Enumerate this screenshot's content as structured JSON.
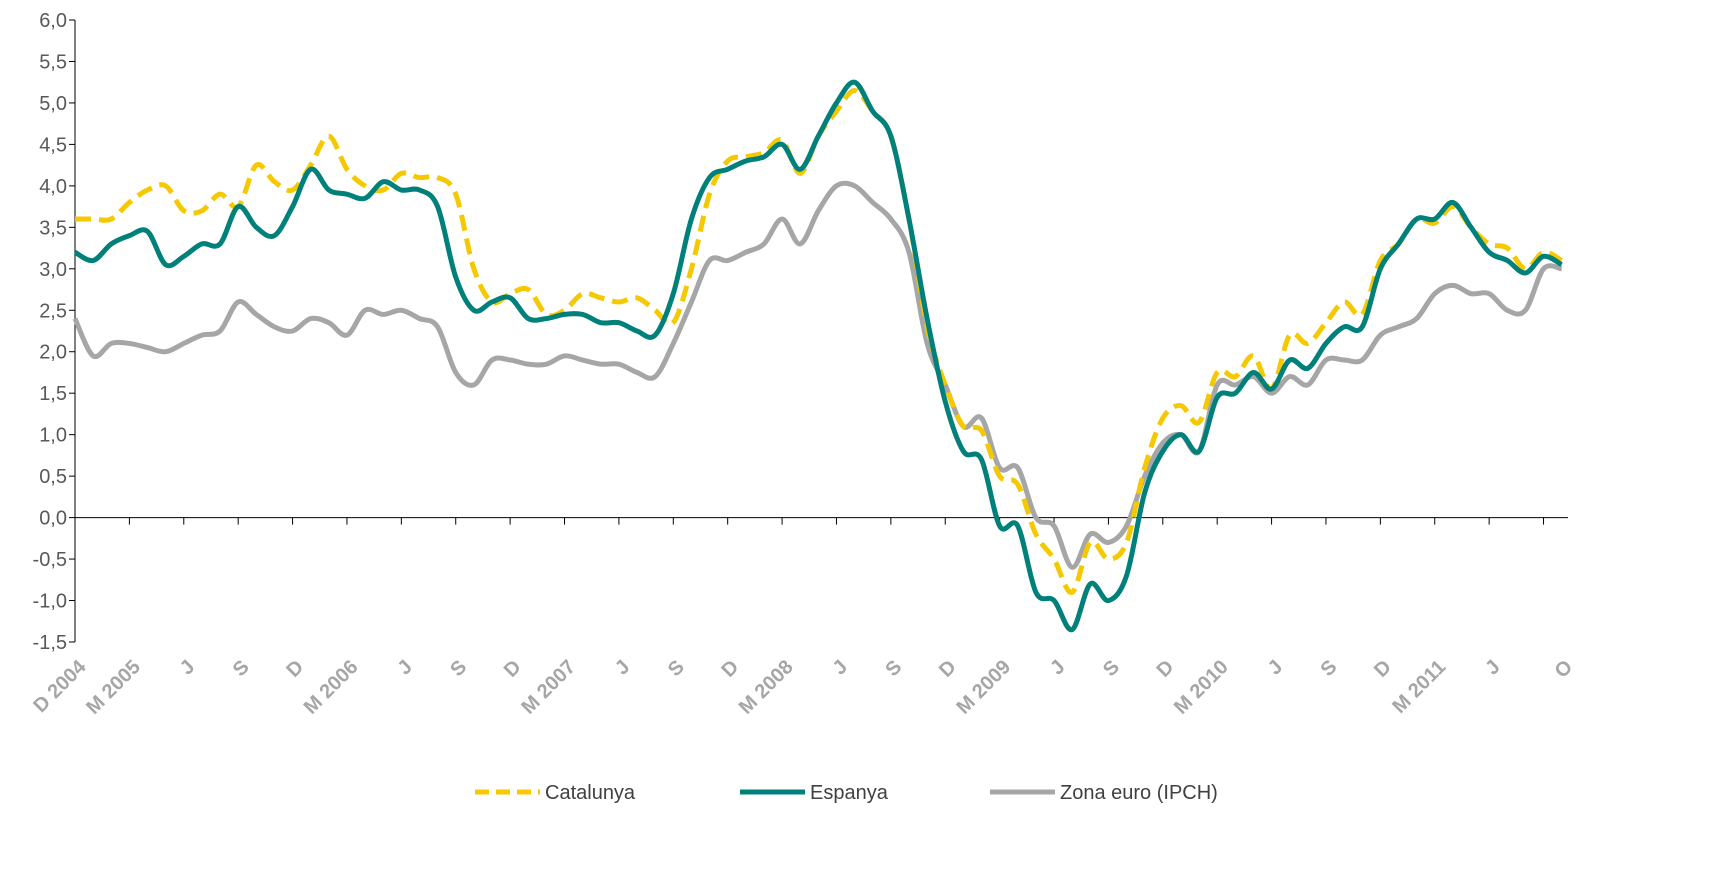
{
  "chart_data": {
    "type": "line",
    "categories": [
      "D 2004",
      null,
      null,
      "M 2005",
      null,
      null,
      "J",
      null,
      null,
      "S",
      null,
      null,
      "D",
      null,
      null,
      "M 2006",
      null,
      null,
      "J",
      null,
      null,
      "S",
      null,
      null,
      "D",
      null,
      null,
      "M 2007",
      null,
      null,
      "J",
      null,
      null,
      "S",
      null,
      null,
      "D",
      null,
      null,
      "M 2008",
      null,
      null,
      "J",
      null,
      null,
      "S",
      null,
      null,
      "D",
      null,
      null,
      "M 2009",
      null,
      null,
      "J",
      null,
      null,
      "S",
      null,
      null,
      "D",
      null,
      null,
      "M 2010",
      null,
      null,
      "J",
      null,
      null,
      "S",
      null,
      null,
      "D",
      null,
      null,
      "M 2011",
      null,
      null,
      "J",
      null,
      null,
      null,
      "O"
    ],
    "series": [
      {
        "name": "Catalunya",
        "color": "#f5c800",
        "dash": true,
        "values": [
          3.6,
          3.6,
          3.6,
          3.8,
          3.95,
          4.0,
          3.7,
          3.7,
          3.9,
          3.75,
          4.25,
          4.05,
          3.95,
          4.25,
          4.6,
          4.2,
          4.0,
          3.95,
          4.15,
          4.1,
          4.1,
          3.9,
          3.0,
          2.6,
          2.7,
          2.75,
          2.45,
          2.5,
          2.7,
          2.65,
          2.6,
          2.65,
          2.5,
          2.35,
          3.0,
          3.9,
          4.3,
          4.35,
          4.4,
          4.55,
          4.15,
          4.6,
          4.9,
          5.15,
          4.9,
          4.6,
          3.6,
          2.3,
          1.6,
          1.1,
          1.05,
          0.5,
          0.4,
          -0.2,
          -0.5,
          -0.9,
          -0.3,
          -0.5,
          -0.3,
          0.6,
          1.2,
          1.35,
          1.15,
          1.75,
          1.7,
          1.95,
          1.55,
          2.2,
          2.1,
          2.35,
          2.6,
          2.45,
          3.1,
          3.3,
          3.6,
          3.55,
          3.75,
          3.5,
          3.3,
          3.25,
          3.0,
          3.2,
          3.1
        ]
      },
      {
        "name": "Espanya",
        "color": "#00807a",
        "dash": false,
        "values": [
          3.2,
          3.1,
          3.3,
          3.4,
          3.45,
          3.05,
          3.15,
          3.3,
          3.3,
          3.75,
          3.5,
          3.4,
          3.75,
          4.2,
          3.95,
          3.9,
          3.85,
          4.05,
          3.95,
          3.95,
          3.75,
          2.9,
          2.5,
          2.6,
          2.65,
          2.4,
          2.4,
          2.45,
          2.45,
          2.35,
          2.35,
          2.25,
          2.2,
          2.7,
          3.6,
          4.1,
          4.2,
          4.3,
          4.35,
          4.5,
          4.2,
          4.6,
          5.0,
          5.25,
          4.9,
          4.6,
          3.6,
          2.4,
          1.4,
          0.8,
          0.7,
          -0.1,
          -0.1,
          -0.9,
          -1.0,
          -1.35,
          -0.8,
          -1.0,
          -0.7,
          0.3,
          0.8,
          1.0,
          0.8,
          1.45,
          1.5,
          1.75,
          1.55,
          1.9,
          1.8,
          2.1,
          2.3,
          2.3,
          3.0,
          3.3,
          3.6,
          3.6,
          3.8,
          3.5,
          3.2,
          3.1,
          2.95,
          3.15,
          3.05
        ]
      },
      {
        "name": "Zona euro (IPCH)",
        "color": "#a6a6a6",
        "dash": false,
        "values": [
          2.4,
          1.95,
          2.1,
          2.1,
          2.05,
          2.0,
          2.1,
          2.2,
          2.25,
          2.6,
          2.45,
          2.3,
          2.25,
          2.4,
          2.35,
          2.2,
          2.5,
          2.45,
          2.5,
          2.4,
          2.3,
          1.75,
          1.6,
          1.9,
          1.9,
          1.85,
          1.85,
          1.95,
          1.9,
          1.85,
          1.85,
          1.75,
          1.7,
          2.1,
          2.6,
          3.1,
          3.1,
          3.2,
          3.3,
          3.6,
          3.3,
          3.7,
          4.0,
          4.0,
          3.8,
          3.6,
          3.2,
          2.1,
          1.6,
          1.1,
          1.2,
          0.6,
          0.6,
          0.0,
          -0.1,
          -0.6,
          -0.2,
          -0.3,
          -0.1,
          0.5,
          0.9,
          1.0,
          0.8,
          1.6,
          1.6,
          1.7,
          1.5,
          1.7,
          1.6,
          1.9,
          1.9,
          1.9,
          2.2,
          2.3,
          2.4,
          2.7,
          2.8,
          2.7,
          2.7,
          2.5,
          2.5,
          3.0,
          3.0
        ]
      }
    ],
    "ylim": [
      -1.5,
      6.0
    ],
    "yticks": [
      {
        "value": -1.5,
        "label": "-1,5"
      },
      {
        "value": -1.0,
        "label": "-1,0"
      },
      {
        "value": -0.5,
        "label": "-0,5"
      },
      {
        "value": 0,
        "label": "0,0"
      },
      {
        "value": 0.5,
        "label": "0,5"
      },
      {
        "value": 1.0,
        "label": "1,0"
      },
      {
        "value": 1.5,
        "label": "1,5"
      },
      {
        "value": 2.0,
        "label": "2,0"
      },
      {
        "value": 2.5,
        "label": "2,5"
      },
      {
        "value": 3.0,
        "label": "3,0"
      },
      {
        "value": 3.5,
        "label": "3,5"
      },
      {
        "value": 4.0,
        "label": "4,0"
      },
      {
        "value": 4.5,
        "label": "4,5"
      },
      {
        "value": 5.0,
        "label": "5,0"
      },
      {
        "value": 5.5,
        "label": "5,5"
      },
      {
        "value": 6.0,
        "label": "6,0"
      }
    ],
    "legend": "bottom"
  }
}
